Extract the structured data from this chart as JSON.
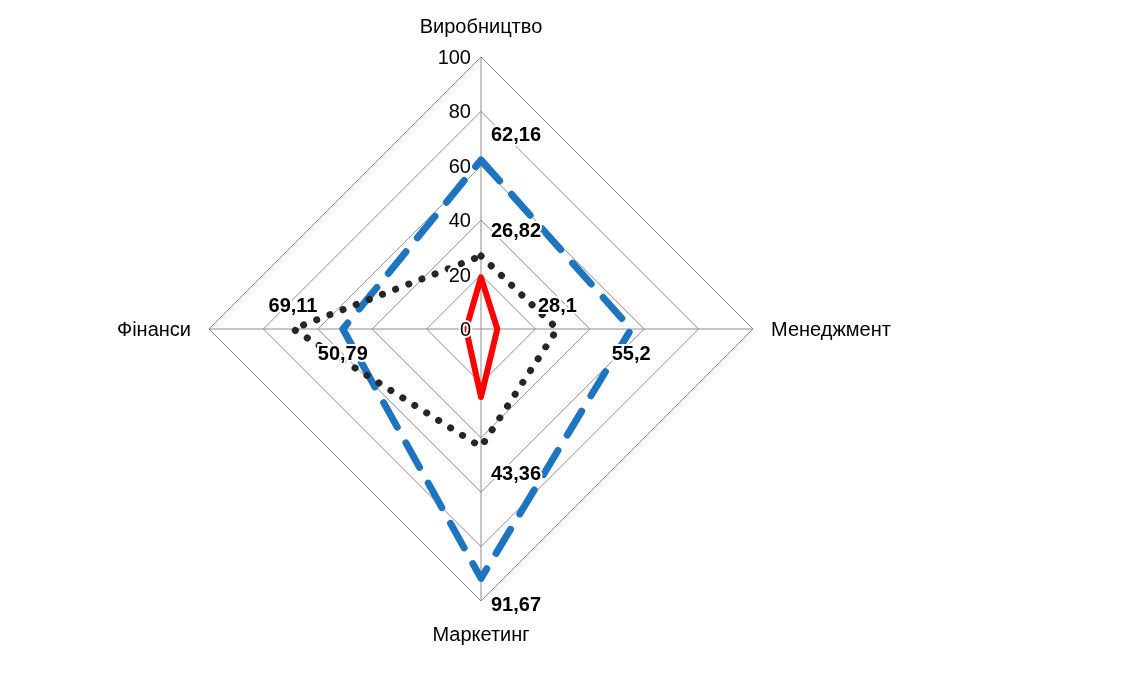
{
  "chart_data": {
    "type": "radar",
    "categories": [
      "Виробництво",
      "Менеджмент",
      "Маркетинг",
      "Фінанси"
    ],
    "ylim": [
      0,
      100
    ],
    "yticks": [
      0,
      20,
      40,
      60,
      80,
      100
    ],
    "grid": true,
    "marker": "none",
    "series": [
      {
        "color": "#1f74c0",
        "line_style": "dashed",
        "values": [
          62.16,
          55.2,
          91.67,
          50.79
        ],
        "value_labels": [
          "62,16",
          "55,2",
          "91,67",
          "50,79"
        ]
      },
      {
        "color": "#ff0000",
        "line_style": "solid",
        "values": [
          19,
          6,
          25,
          5.5
        ]
      },
      {
        "color": "#262626",
        "line_style": "dotted",
        "values": [
          26.82,
          28.1,
          43.36,
          69.11
        ],
        "value_labels": [
          "26,82",
          "28,1",
          "43,36",
          "69,11"
        ]
      }
    ]
  }
}
